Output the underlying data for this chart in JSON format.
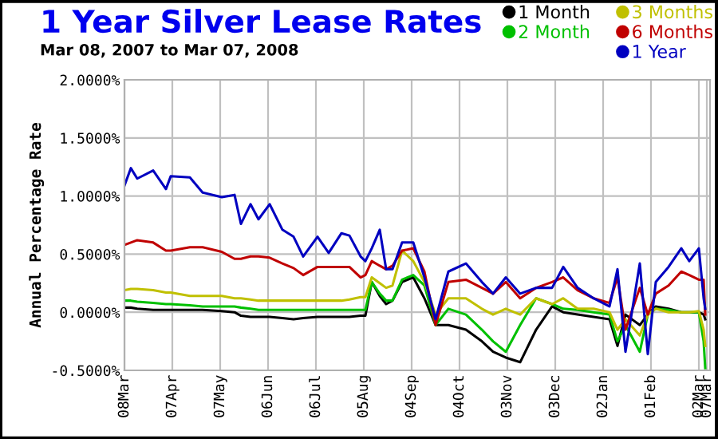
{
  "chart_data": {
    "type": "line",
    "title": "1 Year Silver Lease Rates",
    "subtitle": "Mar 08, 2007 to Mar 07, 2008",
    "ylabel": "Annual Percentage Rate",
    "x": [
      "2007-03-08",
      "2007-03-12",
      "2007-03-16",
      "2007-03-26",
      "2007-04-03",
      "2007-04-06",
      "2007-04-18",
      "2007-04-26",
      "2007-05-08",
      "2007-05-16",
      "2007-05-20",
      "2007-05-26",
      "2007-05-31",
      "2007-06-07",
      "2007-06-15",
      "2007-06-22",
      "2007-06-28",
      "2007-07-07",
      "2007-07-14",
      "2007-07-22",
      "2007-07-27",
      "2007-08-03",
      "2007-08-06",
      "2007-08-10",
      "2007-08-15",
      "2007-08-19",
      "2007-08-23",
      "2007-08-29",
      "2007-09-05",
      "2007-09-12",
      "2007-09-19",
      "2007-09-27",
      "2007-10-08",
      "2007-10-18",
      "2007-10-25",
      "2007-11-02",
      "2007-11-11",
      "2007-11-21",
      "2007-12-01",
      "2007-12-08",
      "2007-12-17",
      "2007-12-27",
      "2008-01-06",
      "2008-01-11",
      "2008-01-16",
      "2008-01-25",
      "2008-01-30",
      "2008-02-04",
      "2008-02-12",
      "2008-02-20",
      "2008-02-25",
      "2008-03-02",
      "2008-03-05",
      "2008-03-06"
    ],
    "series": [
      {
        "name": "1 Month",
        "color": "#000000",
        "values": [
          0.04,
          0.04,
          0.03,
          0.02,
          0.02,
          0.02,
          0.02,
          0.02,
          0.01,
          0.0,
          -0.03,
          -0.04,
          -0.04,
          -0.04,
          -0.05,
          -0.06,
          -0.05,
          -0.04,
          -0.04,
          -0.04,
          -0.04,
          -0.03,
          -0.03,
          0.26,
          0.14,
          0.07,
          0.1,
          0.26,
          0.3,
          0.12,
          -0.11,
          -0.11,
          -0.15,
          -0.25,
          -0.34,
          -0.39,
          -0.43,
          -0.15,
          0.05,
          0.0,
          -0.02,
          -0.04,
          -0.06,
          -0.29,
          -0.02,
          -0.11,
          -0.02,
          0.05,
          0.03,
          0.0,
          0.0,
          0.0,
          -0.02,
          -0.06
        ]
      },
      {
        "name": "2 Month",
        "color": "#00c000",
        "values": [
          0.1,
          0.1,
          0.09,
          0.08,
          0.07,
          0.07,
          0.06,
          0.05,
          0.05,
          0.05,
          0.04,
          0.03,
          0.02,
          0.02,
          0.02,
          0.02,
          0.02,
          0.02,
          0.02,
          0.02,
          0.02,
          0.02,
          0.02,
          0.26,
          0.16,
          0.1,
          0.1,
          0.28,
          0.32,
          0.23,
          -0.11,
          0.03,
          -0.02,
          -0.15,
          -0.25,
          -0.34,
          -0.11,
          0.12,
          0.07,
          0.03,
          0.02,
          0.0,
          -0.02,
          -0.25,
          -0.11,
          -0.34,
          -0.02,
          0.03,
          0.02,
          0.0,
          0.0,
          0.0,
          -0.25,
          -0.48
        ]
      },
      {
        "name": "3 Months",
        "color": "#c0c000",
        "values": [
          0.19,
          0.2,
          0.2,
          0.19,
          0.17,
          0.17,
          0.14,
          0.14,
          0.14,
          0.12,
          0.12,
          0.11,
          0.1,
          0.1,
          0.1,
          0.1,
          0.1,
          0.1,
          0.1,
          0.1,
          0.11,
          0.13,
          0.13,
          0.3,
          0.25,
          0.21,
          0.23,
          0.53,
          0.44,
          0.26,
          -0.02,
          0.12,
          0.12,
          0.03,
          -0.02,
          0.03,
          -0.02,
          0.12,
          0.07,
          0.12,
          0.03,
          0.03,
          0.0,
          -0.15,
          -0.06,
          -0.2,
          -0.02,
          0.03,
          0.0,
          0.0,
          0.0,
          0.01,
          -0.15,
          -0.29
        ]
      },
      {
        "name": "6 Months",
        "color": "#c00000",
        "values": [
          0.58,
          0.6,
          0.62,
          0.6,
          0.53,
          0.53,
          0.56,
          0.56,
          0.52,
          0.46,
          0.46,
          0.48,
          0.48,
          0.47,
          0.42,
          0.38,
          0.32,
          0.39,
          0.39,
          0.39,
          0.39,
          0.3,
          0.32,
          0.44,
          0.4,
          0.37,
          0.4,
          0.53,
          0.55,
          0.35,
          -0.11,
          0.26,
          0.28,
          0.21,
          0.16,
          0.26,
          0.12,
          0.21,
          0.26,
          0.3,
          0.19,
          0.12,
          0.08,
          0.3,
          -0.15,
          0.21,
          -0.02,
          0.16,
          0.23,
          0.35,
          0.32,
          0.28,
          0.28,
          -0.02
        ]
      },
      {
        "name": "1 Year",
        "color": "#0000c0",
        "values": [
          1.09,
          1.24,
          1.15,
          1.22,
          1.06,
          1.17,
          1.16,
          1.03,
          0.99,
          1.01,
          0.76,
          0.93,
          0.8,
          0.93,
          0.71,
          0.65,
          0.48,
          0.65,
          0.51,
          0.68,
          0.66,
          0.48,
          0.44,
          0.55,
          0.71,
          0.37,
          0.37,
          0.6,
          0.6,
          0.3,
          -0.06,
          0.35,
          0.42,
          0.26,
          0.16,
          0.3,
          0.16,
          0.21,
          0.21,
          0.39,
          0.21,
          0.12,
          0.05,
          0.37,
          -0.34,
          0.42,
          -0.36,
          0.26,
          0.39,
          0.55,
          0.44,
          0.55,
          0.12,
          0.03
        ]
      }
    ],
    "xlim": [
      "2007-03-08",
      "2008-03-09"
    ],
    "xticks": [
      {
        "value": "2007-03-08",
        "label": "08Mar"
      },
      {
        "value": "2007-04-07",
        "label": "07Apr"
      },
      {
        "value": "2007-05-07",
        "label": "07May"
      },
      {
        "value": "2007-06-06",
        "label": "06Jun"
      },
      {
        "value": "2007-07-06",
        "label": "06Jul"
      },
      {
        "value": "2007-08-05",
        "label": "05Aug"
      },
      {
        "value": "2007-09-04",
        "label": "04Sep"
      },
      {
        "value": "2007-10-04",
        "label": "04Oct"
      },
      {
        "value": "2007-11-03",
        "label": "03Nov"
      },
      {
        "value": "2007-12-03",
        "label": "03Dec"
      },
      {
        "value": "2008-01-02",
        "label": "02Jan"
      },
      {
        "value": "2008-02-01",
        "label": "01Feb"
      },
      {
        "value": "2008-03-02",
        "label": "02Mar"
      },
      {
        "value": "2008-03-07",
        "label": "07Mar"
      }
    ],
    "ylim": [
      -0.5,
      2.0
    ],
    "yticks": [
      {
        "value": -0.5,
        "label": "-0.5000%"
      },
      {
        "value": 0.0,
        "label": "0.0000%"
      },
      {
        "value": 0.5,
        "label": "0.5000%"
      },
      {
        "value": 1.0,
        "label": "1.0000%"
      },
      {
        "value": 1.5,
        "label": "1.5000%"
      },
      {
        "value": 2.0,
        "label": "2.0000%"
      }
    ],
    "grid": true,
    "legend": "top right",
    "marker": "none",
    "line_style": "solid"
  }
}
